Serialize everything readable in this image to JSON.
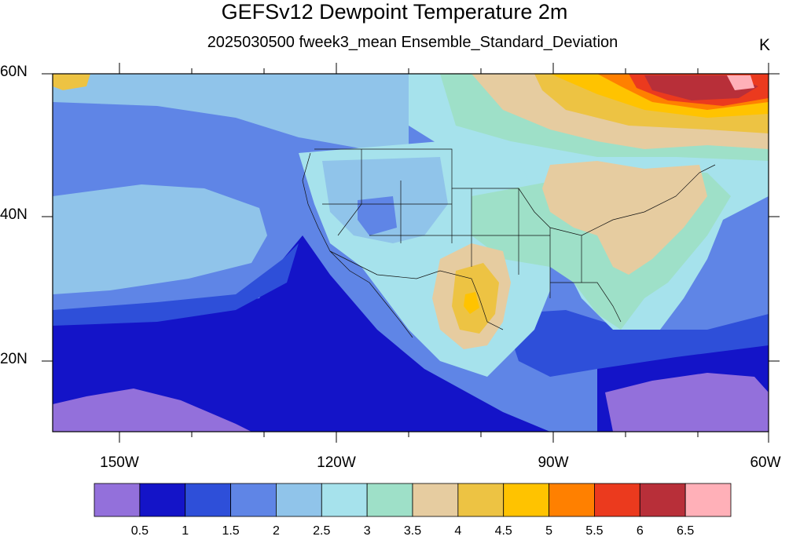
{
  "title": "GEFSv12 Dewpoint Temperature 2m",
  "subtitle": "2025030500 fweek3_mean Ensemble_Standard_Deviation",
  "units": "K",
  "lat_labels": [
    "60N",
    "40N",
    "20N"
  ],
  "lon_labels": [
    "150W",
    "120W",
    "90W",
    "60W"
  ],
  "colorbar": {
    "colors": [
      "#9370db",
      "#1414c8",
      "#2e4fd9",
      "#5f85e6",
      "#90c4ea",
      "#a6e2ec",
      "#9ee0c8",
      "#e6ccA0",
      "#edc343",
      "#ffc300",
      "#ff8000",
      "#eb3a1e",
      "#b82f39",
      "#ffb0b8"
    ],
    "labels": [
      "0.5",
      "1",
      "1.5",
      "2",
      "2.5",
      "3",
      "3.5",
      "4",
      "4.5",
      "5",
      "5.5",
      "6",
      "6.5"
    ]
  }
}
